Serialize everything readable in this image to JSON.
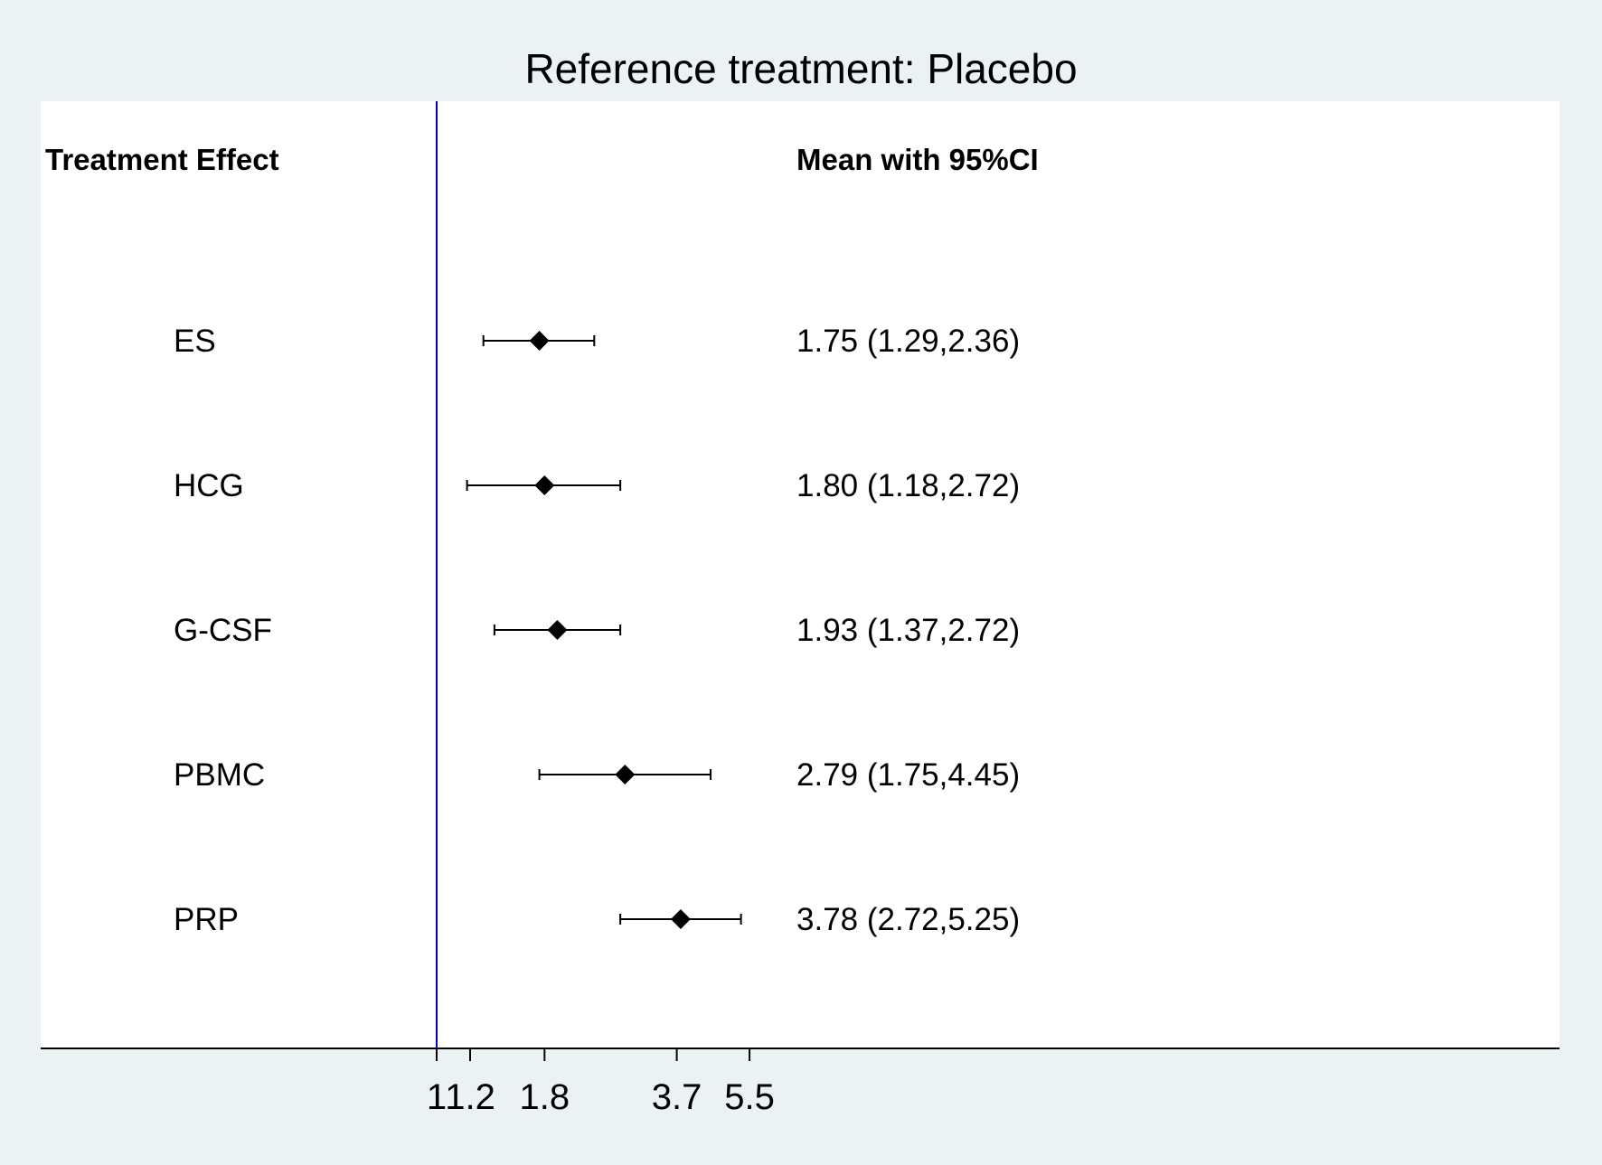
{
  "chart_data": {
    "type": "forest",
    "title": "Reference treatment: Placebo",
    "column_headers": {
      "left": "Treatment Effect",
      "right": "Mean with 95%CI"
    },
    "scale": "log",
    "reference_line": 1,
    "reference_line_color": "#0000cc",
    "xticks": [
      1,
      1.2,
      1.8,
      3.7,
      5.5
    ],
    "xtick_labels": [
      "1",
      "1.2",
      "1.8",
      "3.7",
      "5.5"
    ],
    "rows": [
      {
        "label": "ES",
        "mean": 1.75,
        "lower": 1.29,
        "upper": 2.36,
        "text": "1.75 (1.29,2.36)"
      },
      {
        "label": "HCG",
        "mean": 1.8,
        "lower": 1.18,
        "upper": 2.72,
        "text": "1.80 (1.18,2.72)"
      },
      {
        "label": "G-CSF",
        "mean": 1.93,
        "lower": 1.37,
        "upper": 2.72,
        "text": "1.93 (1.37,2.72)"
      },
      {
        "label": "PBMC",
        "mean": 2.79,
        "lower": 1.75,
        "upper": 4.45,
        "text": "2.79 (1.75,4.45)"
      },
      {
        "label": "PRP",
        "mean": 3.78,
        "lower": 2.72,
        "upper": 5.25,
        "text": "3.78 (2.72,5.25)"
      }
    ]
  }
}
